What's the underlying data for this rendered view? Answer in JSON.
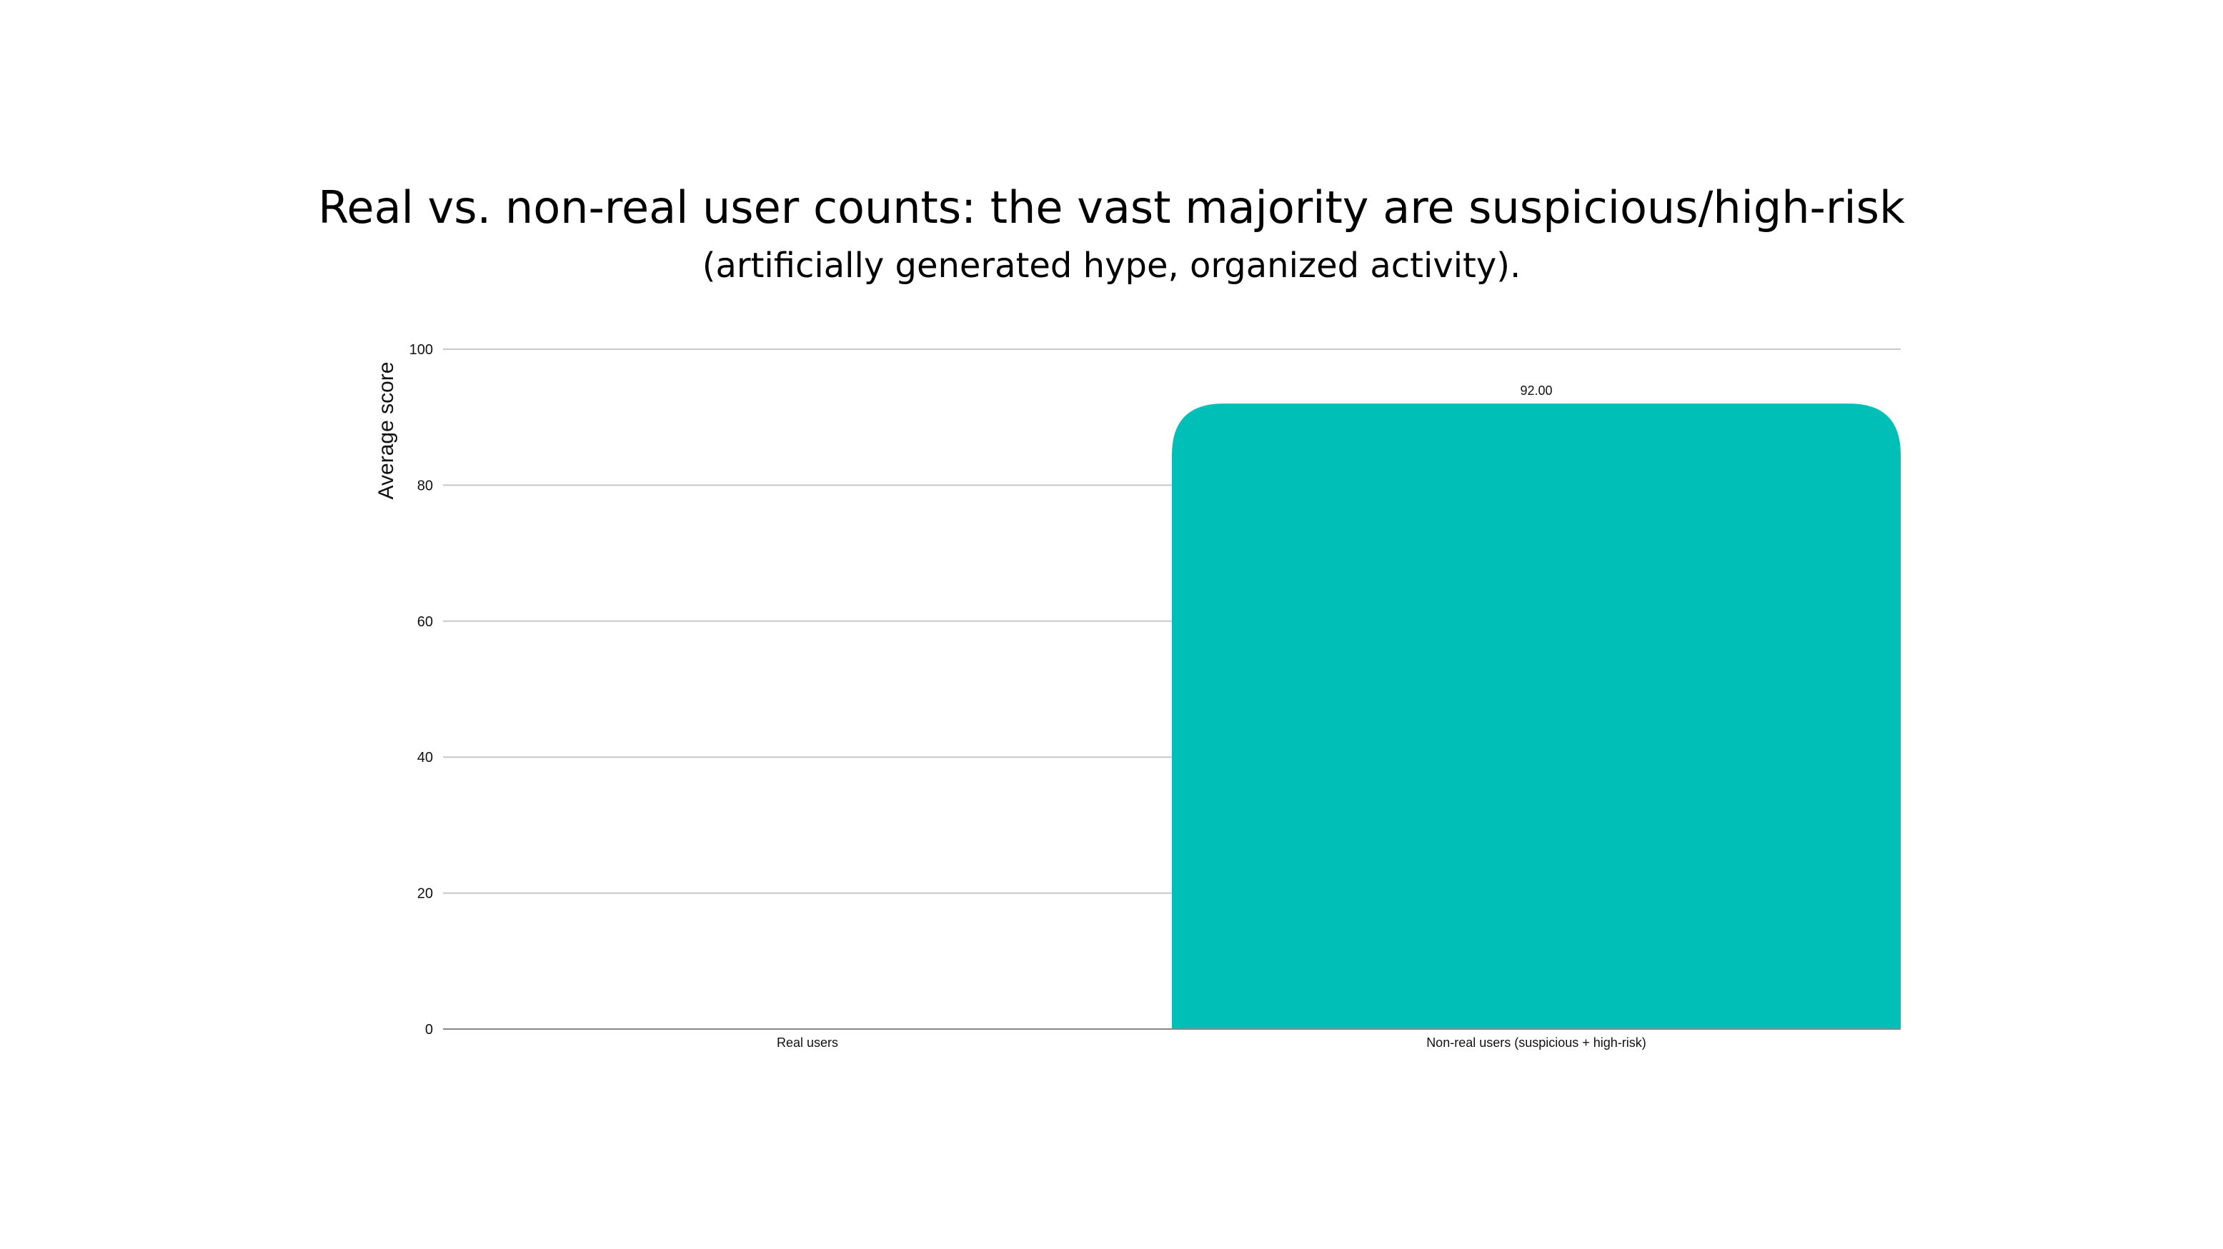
{
  "title": "Real vs. non-real user counts: the vast majority are suspicious/high-risk",
  "subtitle": "(artificially generated hype, organized activity).",
  "colors": {
    "bar": "#00BFB7",
    "grid": "#C8C8C8",
    "axis": "#888888",
    "text": "#111111"
  },
  "chart_data": {
    "type": "bar",
    "categories": [
      "Real users",
      "Non-real users (suspicious + high-risk)"
    ],
    "values": [
      0,
      92
    ],
    "value_labels": [
      "",
      "92.00"
    ],
    "ylabel": "Average score",
    "xlabel": "",
    "ylim": [
      0,
      100
    ],
    "yticks": [
      0,
      20,
      40,
      60,
      80,
      100
    ],
    "grid": true,
    "legend": "none"
  }
}
